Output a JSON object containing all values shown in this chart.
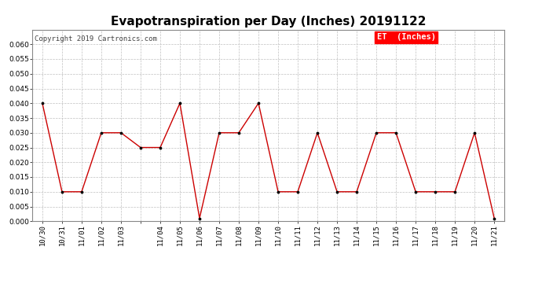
{
  "title": "Evapotranspiration per Day (Inches) 20191122",
  "copyright": "Copyright 2019 Cartronics.com",
  "legend_label": "ET  (Inches)",
  "legend_bg": "#ff0000",
  "legend_fg": "#ffffff",
  "line_color": "#cc0000",
  "marker_color": "#000000",
  "bg_color": "#ffffff",
  "grid_color": "#c0c0c0",
  "x_labels": [
    "10/30",
    "10/31",
    "11/01",
    "11/02",
    "11/03",
    "11/03",
    "11/04",
    "11/05",
    "11/06",
    "11/07",
    "11/08",
    "11/09",
    "11/10",
    "11/11",
    "11/12",
    "11/13",
    "11/14",
    "11/15",
    "11/16",
    "11/17",
    "11/18",
    "11/19",
    "11/20",
    "11/21"
  ],
  "tick_labels": [
    "10/30",
    "10/31",
    "11/01",
    "11/02",
    "11/03",
    "",
    "11/04",
    "11/05",
    "11/06",
    "11/07",
    "11/08",
    "11/09",
    "11/10",
    "11/11",
    "11/12",
    "11/13",
    "11/14",
    "11/15",
    "11/16",
    "11/17",
    "11/18",
    "11/19",
    "11/20",
    "11/21"
  ],
  "values": [
    0.04,
    0.01,
    0.01,
    0.03,
    0.03,
    0.025,
    0.025,
    0.04,
    0.001,
    0.03,
    0.03,
    0.04,
    0.01,
    0.01,
    0.03,
    0.01,
    0.01,
    0.03,
    0.03,
    0.01,
    0.01,
    0.01,
    0.03,
    0.001
  ],
  "ylim": [
    0.0,
    0.065
  ],
  "yticks": [
    0.0,
    0.005,
    0.01,
    0.015,
    0.02,
    0.025,
    0.03,
    0.035,
    0.04,
    0.045,
    0.05,
    0.055,
    0.06
  ],
  "title_fontsize": 11,
  "copyright_fontsize": 6.5,
  "tick_fontsize": 6.5,
  "legend_fontsize": 7.5
}
